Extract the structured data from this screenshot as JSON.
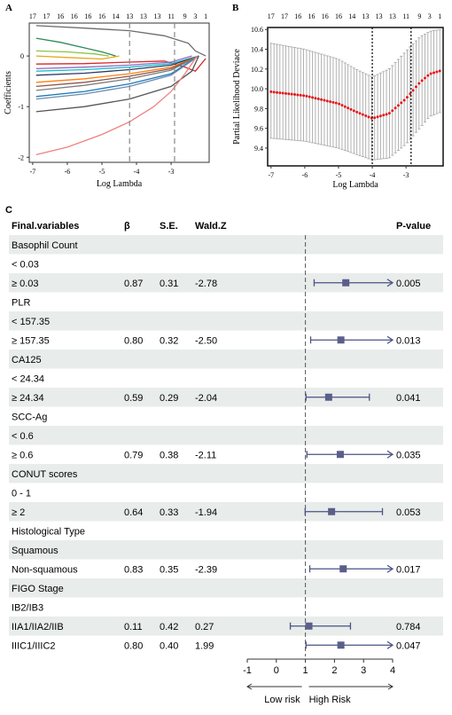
{
  "chart_data": [
    {
      "type": "line",
      "panel_label": "A",
      "xlabel": "Log Lambda",
      "ylabel": "Coefficients",
      "xticks": [
        -7,
        -6,
        -5,
        -4,
        -3
      ],
      "yticks": [
        -2,
        -1,
        0
      ],
      "xlim": [
        -7.1,
        -1.9
      ],
      "ylim": [
        -2.1,
        0.65
      ],
      "top_axis_labels": [
        {
          "x": -7.0,
          "label": "17"
        },
        {
          "x": -6.6,
          "label": "17"
        },
        {
          "x": -6.2,
          "label": "16"
        },
        {
          "x": -5.8,
          "label": "16"
        },
        {
          "x": -5.4,
          "label": "16"
        },
        {
          "x": -5.0,
          "label": "16"
        },
        {
          "x": -4.6,
          "label": "14"
        },
        {
          "x": -4.2,
          "label": "13"
        },
        {
          "x": -3.8,
          "label": "13"
        },
        {
          "x": -3.4,
          "label": "13"
        },
        {
          "x": -3.0,
          "label": "11"
        },
        {
          "x": -2.6,
          "label": "9"
        },
        {
          "x": -2.3,
          "label": "3"
        },
        {
          "x": -2.0,
          "label": "1"
        }
      ],
      "vlines": [
        -4.2,
        -2.9
      ],
      "series": [
        {
          "color": "#6b6b6b",
          "x": [
            -6.9,
            -5.5,
            -4.2,
            -3.2,
            -2.5,
            -2.3,
            -2.0
          ],
          "y": [
            0.6,
            0.55,
            0.5,
            0.4,
            0.25,
            0.1,
            0.0
          ]
        },
        {
          "color": "#2e8b57",
          "x": [
            -6.9,
            -6.2,
            -5.5,
            -5.0,
            -4.6
          ],
          "y": [
            0.35,
            0.27,
            0.16,
            0.08,
            0.0
          ]
        },
        {
          "color": "#8bc34a",
          "x": [
            -6.9,
            -6.0,
            -5.2,
            -4.8
          ],
          "y": [
            0.1,
            0.08,
            0.04,
            0.0
          ]
        },
        {
          "color": "#e6a817",
          "x": [
            -6.9,
            -6.0,
            -5.0,
            -4.5
          ],
          "y": [
            0.0,
            -0.03,
            -0.06,
            0.0
          ]
        },
        {
          "color": "#d62728",
          "x": [
            -6.9,
            -5.5,
            -4.2,
            -3.2,
            -2.6,
            -2.3,
            -2.0
          ],
          "y": [
            -0.16,
            -0.15,
            -0.12,
            -0.1,
            -0.22,
            -0.3,
            -0.05
          ]
        },
        {
          "color": "#9467bd",
          "x": [
            -6.9,
            -5.5,
            -4.2,
            -3.0,
            -2.4
          ],
          "y": [
            -0.25,
            -0.22,
            -0.18,
            -0.12,
            0.0
          ]
        },
        {
          "color": "#17becf",
          "x": [
            -6.9,
            -5.5,
            -4.2,
            -3.0,
            -2.2
          ],
          "y": [
            -0.3,
            -0.27,
            -0.22,
            -0.15,
            0.0
          ]
        },
        {
          "color": "#2b3a67",
          "x": [
            -6.9,
            -5.5,
            -4.2,
            -3.0,
            -2.2
          ],
          "y": [
            -0.38,
            -0.34,
            -0.27,
            -0.18,
            0.0
          ]
        },
        {
          "color": "#ff7f0e",
          "x": [
            -6.9,
            -5.5,
            -4.2,
            -3.0,
            -2.2
          ],
          "y": [
            -0.52,
            -0.45,
            -0.35,
            -0.22,
            0.0
          ]
        },
        {
          "color": "#8c564b",
          "x": [
            -6.9,
            -5.5,
            -4.2,
            -3.0,
            -2.2
          ],
          "y": [
            -0.6,
            -0.52,
            -0.4,
            -0.25,
            0.0
          ]
        },
        {
          "color": "#7f7f7f",
          "x": [
            -6.9,
            -5.5,
            -4.2,
            -3.0,
            -2.2
          ],
          "y": [
            -0.68,
            -0.58,
            -0.45,
            -0.28,
            0.0
          ]
        },
        {
          "color": "#1f77b4",
          "x": [
            -6.9,
            -5.5,
            -4.2,
            -3.0,
            -2.2
          ],
          "y": [
            -0.8,
            -0.7,
            -0.55,
            -0.35,
            0.0
          ]
        },
        {
          "color": "#6a8caf",
          "x": [
            -6.9,
            -5.5,
            -4.2,
            -3.0,
            -2.2
          ],
          "y": [
            -0.85,
            -0.75,
            -0.6,
            -0.38,
            0.0
          ]
        },
        {
          "color": "#555555",
          "x": [
            -6.9,
            -5.5,
            -4.2,
            -3.0,
            -2.4,
            -2.2
          ],
          "y": [
            -1.1,
            -1.0,
            -0.85,
            -0.6,
            -0.3,
            0.0
          ]
        },
        {
          "color": "#f08080",
          "x": [
            -6.9,
            -6.0,
            -5.0,
            -4.2,
            -3.5,
            -3.0,
            -2.6,
            -2.4,
            -2.25
          ],
          "y": [
            -1.95,
            -1.8,
            -1.55,
            -1.3,
            -1.0,
            -0.7,
            -0.35,
            -0.15,
            0.0
          ]
        }
      ]
    },
    {
      "type": "scatter",
      "panel_label": "B",
      "xlabel": "Log Lambda",
      "ylabel": "Partial Likelihood Deviace",
      "xticks": [
        -7,
        -6,
        -5,
        -4,
        -3
      ],
      "yticks": [
        9.4,
        9.6,
        9.8,
        10.0,
        10.2,
        10.4,
        10.6
      ],
      "xlim": [
        -7.1,
        -1.9
      ],
      "ylim": [
        9.22,
        10.62
      ],
      "top_axis_labels": [
        {
          "x": -7.0,
          "label": "17"
        },
        {
          "x": -6.6,
          "label": "17"
        },
        {
          "x": -6.2,
          "label": "16"
        },
        {
          "x": -5.8,
          "label": "16"
        },
        {
          "x": -5.4,
          "label": "16"
        },
        {
          "x": -5.0,
          "label": "16"
        },
        {
          "x": -4.6,
          "label": "14"
        },
        {
          "x": -4.2,
          "label": "13"
        },
        {
          "x": -3.8,
          "label": "13"
        },
        {
          "x": -3.4,
          "label": "13"
        },
        {
          "x": -3.0,
          "label": "11"
        },
        {
          "x": -2.6,
          "label": "9"
        },
        {
          "x": -2.3,
          "label": "3"
        },
        {
          "x": -2.0,
          "label": "1"
        }
      ],
      "vlines": [
        -4.0,
        -2.85
      ],
      "curve": {
        "x": [
          -7.0,
          -6.0,
          -5.0,
          -4.5,
          -4.0,
          -3.5,
          -3.0,
          -2.6,
          -2.3,
          -2.0
        ],
        "mean": [
          9.97,
          9.93,
          9.85,
          9.77,
          9.7,
          9.75,
          9.9,
          10.06,
          10.15,
          10.18
        ],
        "upper": [
          10.46,
          10.4,
          10.3,
          10.2,
          10.12,
          10.2,
          10.38,
          10.52,
          10.58,
          10.6
        ],
        "lower": [
          9.5,
          9.47,
          9.4,
          9.34,
          9.28,
          9.3,
          9.44,
          9.6,
          9.72,
          9.76
        ]
      }
    },
    {
      "type": "table",
      "panel_label": "C",
      "columns": [
        "Final.variables",
        "β",
        "S.E.",
        "Wald.Z",
        "P-value"
      ],
      "axis_ticks": [
        -1,
        0,
        1,
        2,
        3,
        4
      ],
      "xlim": [
        -1,
        4
      ],
      "reference_line": 1,
      "direction_low": "Low risk",
      "direction_high": "High Risk",
      "rows": [
        {
          "label": "Basophil Count",
          "shade": true
        },
        {
          "label": "< 0.03",
          "shade": false
        },
        {
          "label": "≥ 0.03",
          "beta": "0.87",
          "se": "0.31",
          "z": "-2.78",
          "p": "0.005",
          "est": 2.39,
          "lo": 1.3,
          "hi": 4.4,
          "shade": true
        },
        {
          "label": "PLR",
          "shade": false
        },
        {
          "label": "< 157.35",
          "shade": true
        },
        {
          "label": "≥ 157.35",
          "beta": "0.80",
          "se": "0.32",
          "z": "-2.50",
          "p": "0.013",
          "est": 2.22,
          "lo": 1.18,
          "hi": 4.4,
          "shade": false
        },
        {
          "label": "CA125",
          "shade": true
        },
        {
          "label": "< 24.34",
          "shade": false
        },
        {
          "label": "≥ 24.34",
          "beta": "0.59",
          "se": "0.29",
          "z": "-2.04",
          "p": "0.041",
          "est": 1.8,
          "lo": 1.02,
          "hi": 3.2,
          "shade": true
        },
        {
          "label": "SCC-Ag",
          "shade": false
        },
        {
          "label": "< 0.6",
          "shade": true
        },
        {
          "label": "≥ 0.6",
          "beta": "0.79",
          "se": "0.38",
          "z": "-2.11",
          "p": "0.035",
          "est": 2.2,
          "lo": 1.05,
          "hi": 4.4,
          "shade": false
        },
        {
          "label": "CONUT scores",
          "shade": true
        },
        {
          "label": "0 - 1",
          "shade": false
        },
        {
          "label": "≥ 2",
          "beta": "0.64",
          "se": "0.33",
          "z": "-1.94",
          "p": "0.053",
          "est": 1.9,
          "lo": 0.99,
          "hi": 3.65,
          "shade": true
        },
        {
          "label": "Histological Type",
          "shade": false
        },
        {
          "label": "Squamous",
          "shade": true
        },
        {
          "label": "Non-squamous",
          "beta": "0.83",
          "se": "0.35",
          "z": "-2.39",
          "p": "0.017",
          "est": 2.3,
          "lo": 1.15,
          "hi": 4.4,
          "shade": false
        },
        {
          "label": "FIGO Stage",
          "shade": true
        },
        {
          "label": "IB2/IB3",
          "shade": false
        },
        {
          "label": "IIA1/IIA2/IIB",
          "beta": "0.11",
          "se": "0.42",
          "z": "0.27",
          "p": "0.784",
          "est": 1.12,
          "lo": 0.48,
          "hi": 2.55,
          "shade": true
        },
        {
          "label": "IIIC1/IIIC2",
          "beta": "0.80",
          "se": "0.40",
          "z": "1.99",
          "p": "0.047",
          "est": 2.22,
          "lo": 1.02,
          "hi": 4.4,
          "shade": false
        }
      ]
    }
  ]
}
